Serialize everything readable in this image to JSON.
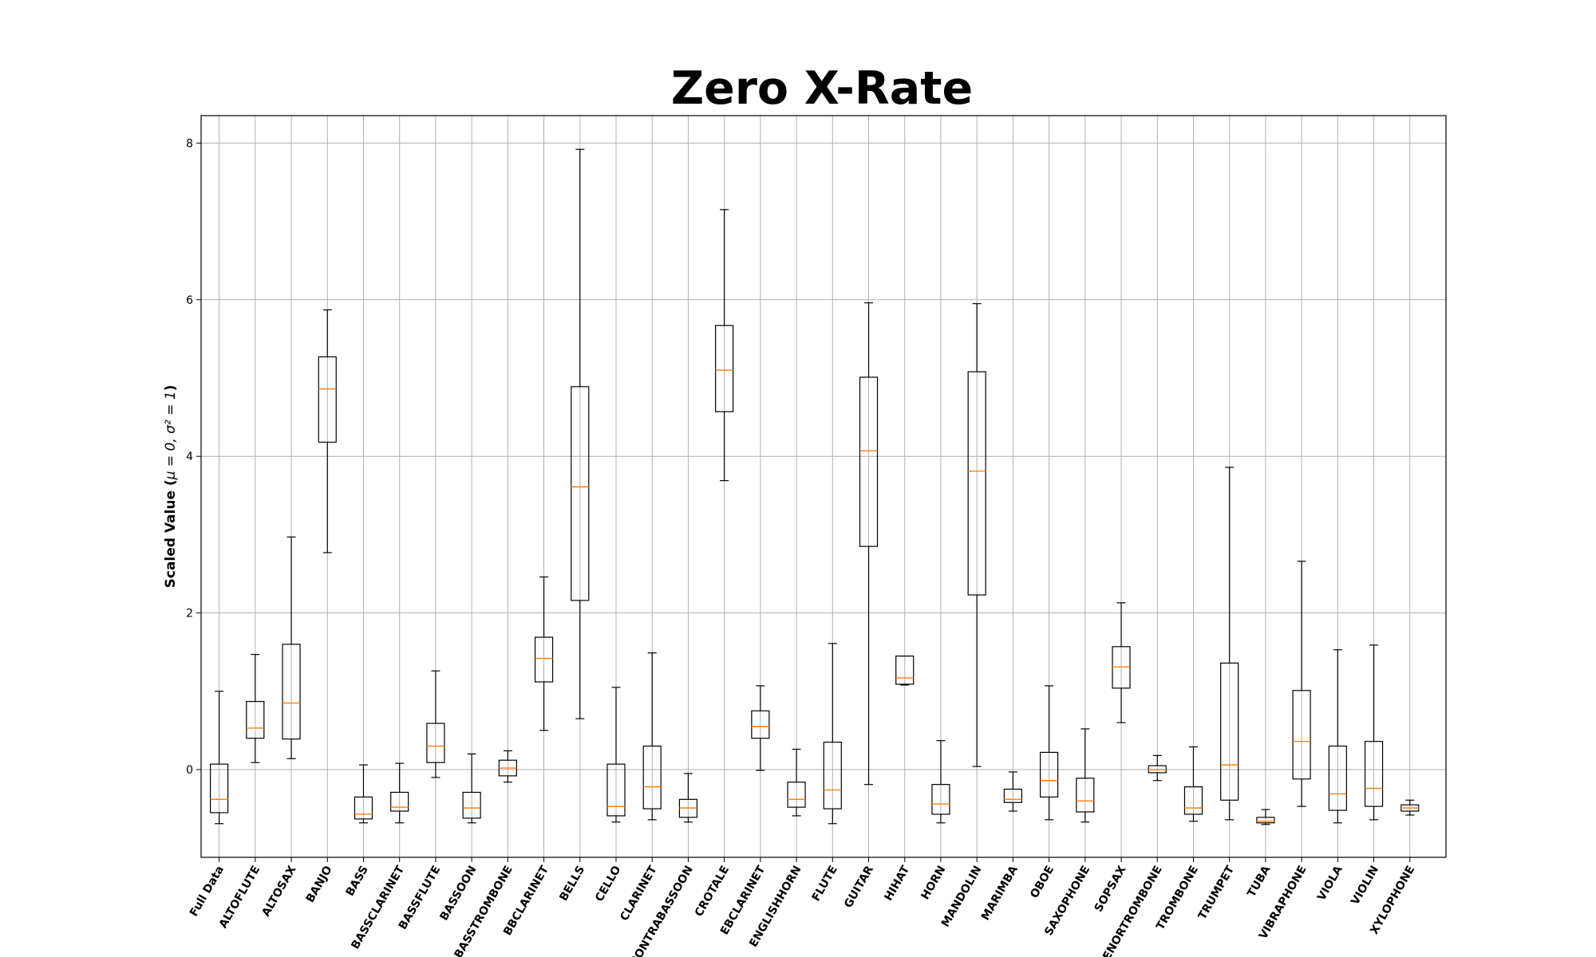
{
  "chart_data": {
    "type": "boxplot",
    "title": "Zero X-Rate",
    "ylabel_prefix": "Scaled Value (",
    "ylabel_math": "μ = 0, σ² = 1",
    "ylabel_suffix": ")",
    "ylim": [
      -1.12,
      8.35
    ],
    "yticks": [
      0,
      2,
      4,
      6,
      8
    ],
    "grid": true,
    "categories": [
      "Full Data",
      "ALTOFLUTE",
      "ALTOSAX",
      "BANJO",
      "BASS",
      "BASSCLARINET",
      "BASSFLUTE",
      "BASSOON",
      "BASSTROMBONE",
      "BBCLARINET",
      "BELLS",
      "CELLO",
      "CLARINET",
      "CONTRABASSOON",
      "CROTALE",
      "EBCLARINET",
      "ENGLISHHORN",
      "FLUTE",
      "GUITAR",
      "HIHAT",
      "HORN",
      "MANDOLIN",
      "MARIMBA",
      "OBOE",
      "SAXOPHONE",
      "SOPSAX",
      "TENORTROMBONE",
      "TROMBONE",
      "TRUMPET",
      "TUBA",
      "VIBRAPHONE",
      "VIOLA",
      "VIOLIN",
      "XYLOPHONE"
    ],
    "boxes": [
      {
        "whislo": -0.69,
        "q1": -0.55,
        "med": -0.38,
        "q3": 0.07,
        "whishi": 1.0
      },
      {
        "whislo": 0.09,
        "q1": 0.4,
        "med": 0.53,
        "q3": 0.87,
        "whishi": 1.47
      },
      {
        "whislo": 0.14,
        "q1": 0.39,
        "med": 0.85,
        "q3": 1.6,
        "whishi": 2.97
      },
      {
        "whislo": 2.77,
        "q1": 4.18,
        "med": 4.86,
        "q3": 5.27,
        "whishi": 5.87
      },
      {
        "whislo": -0.68,
        "q1": -0.63,
        "med": -0.57,
        "q3": -0.35,
        "whishi": 0.06
      },
      {
        "whislo": -0.68,
        "q1": -0.53,
        "med": -0.48,
        "q3": -0.29,
        "whishi": 0.08
      },
      {
        "whislo": -0.1,
        "q1": 0.09,
        "med": 0.3,
        "q3": 0.59,
        "whishi": 1.26
      },
      {
        "whislo": -0.68,
        "q1": -0.62,
        "med": -0.49,
        "q3": -0.29,
        "whishi": 0.2
      },
      {
        "whislo": -0.16,
        "q1": -0.08,
        "med": 0.02,
        "q3": 0.12,
        "whishi": 0.24
      },
      {
        "whislo": 0.5,
        "q1": 1.12,
        "med": 1.42,
        "q3": 1.69,
        "whishi": 2.46
      },
      {
        "whislo": 0.65,
        "q1": 2.16,
        "med": 3.61,
        "q3": 4.89,
        "whishi": 7.92
      },
      {
        "whislo": -0.67,
        "q1": -0.59,
        "med": -0.47,
        "q3": 0.07,
        "whishi": 1.05
      },
      {
        "whislo": -0.64,
        "q1": -0.5,
        "med": -0.22,
        "q3": 0.3,
        "whishi": 1.49
      },
      {
        "whislo": -0.67,
        "q1": -0.61,
        "med": -0.49,
        "q3": -0.38,
        "whishi": -0.05
      },
      {
        "whislo": 3.69,
        "q1": 4.57,
        "med": 5.1,
        "q3": 5.67,
        "whishi": 7.15
      },
      {
        "whislo": -0.01,
        "q1": 0.4,
        "med": 0.55,
        "q3": 0.75,
        "whishi": 1.07
      },
      {
        "whislo": -0.59,
        "q1": -0.48,
        "med": -0.38,
        "q3": -0.16,
        "whishi": 0.26
      },
      {
        "whislo": -0.69,
        "q1": -0.5,
        "med": -0.26,
        "q3": 0.35,
        "whishi": 1.61
      },
      {
        "whislo": -0.19,
        "q1": 2.85,
        "med": 4.07,
        "q3": 5.01,
        "whishi": 5.96
      },
      {
        "whislo": 1.08,
        "q1": 1.09,
        "med": 1.17,
        "q3": 1.45,
        "whishi": 1.45
      },
      {
        "whislo": -0.68,
        "q1": -0.57,
        "med": -0.44,
        "q3": -0.19,
        "whishi": 0.37
      },
      {
        "whislo": 0.04,
        "q1": 2.23,
        "med": 3.81,
        "q3": 5.08,
        "whishi": 5.95
      },
      {
        "whislo": -0.53,
        "q1": -0.42,
        "med": -0.38,
        "q3": -0.25,
        "whishi": -0.03
      },
      {
        "whislo": -0.64,
        "q1": -0.35,
        "med": -0.14,
        "q3": 0.22,
        "whishi": 1.07
      },
      {
        "whislo": -0.67,
        "q1": -0.54,
        "med": -0.4,
        "q3": -0.11,
        "whishi": 0.52
      },
      {
        "whislo": 0.6,
        "q1": 1.04,
        "med": 1.31,
        "q3": 1.57,
        "whishi": 2.13
      },
      {
        "whislo": -0.14,
        "q1": -0.04,
        "med": 0.0,
        "q3": 0.05,
        "whishi": 0.18
      },
      {
        "whislo": -0.66,
        "q1": -0.57,
        "med": -0.49,
        "q3": -0.22,
        "whishi": 0.29
      },
      {
        "whislo": -0.64,
        "q1": -0.39,
        "med": 0.06,
        "q3": 1.36,
        "whishi": 3.86
      },
      {
        "whislo": -0.7,
        "q1": -0.68,
        "med": -0.66,
        "q3": -0.61,
        "whishi": -0.51
      },
      {
        "whislo": -0.47,
        "q1": -0.12,
        "med": 0.36,
        "q3": 1.01,
        "whishi": 2.66
      },
      {
        "whislo": -0.68,
        "q1": -0.52,
        "med": -0.31,
        "q3": 0.3,
        "whishi": 1.53
      },
      {
        "whislo": -0.64,
        "q1": -0.47,
        "med": -0.24,
        "q3": 0.36,
        "whishi": 1.59
      },
      {
        "whislo": -0.58,
        "q1": -0.53,
        "med": -0.49,
        "q3": -0.45,
        "whishi": -0.39
      }
    ],
    "colors": {
      "box": "#000000",
      "median": "#ff7f0e",
      "grid": "#b0b0b0"
    }
  }
}
